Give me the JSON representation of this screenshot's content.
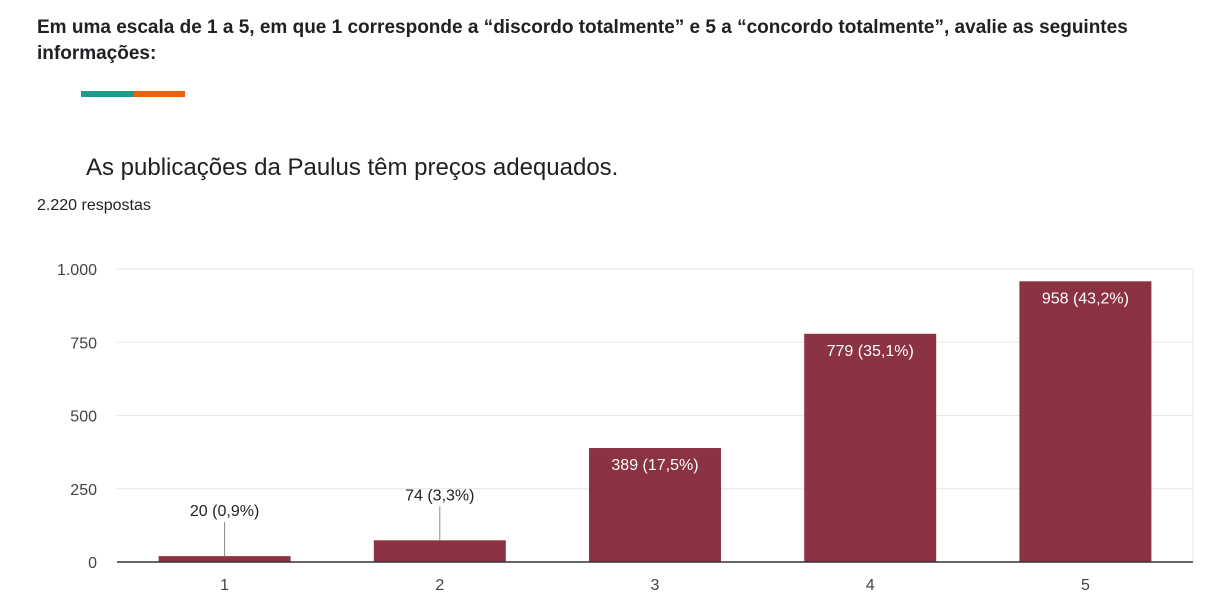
{
  "header": {
    "instruction": "Em uma escala de 1 a 5, em que 1 corresponde a “discordo totalmente” e 5 a “concordo totalmente”, avalie as seguintes informações:"
  },
  "accent_colors": [
    "#1a9b8c",
    "#e8630a"
  ],
  "question": {
    "title": "As publicações da Paulus têm preços adequados.",
    "responses": "2.220 respostas"
  },
  "chart_data": {
    "type": "bar",
    "categories": [
      "1",
      "2",
      "3",
      "4",
      "5"
    ],
    "values": [
      20,
      74,
      389,
      779,
      958
    ],
    "data_labels": [
      "20 (0,9%)",
      "74 (3,3%)",
      "389 (17,5%)",
      "779 (35,1%)",
      "958 (43,2%)"
    ],
    "ylim": [
      0,
      1000
    ],
    "yticks": [
      0,
      250,
      500,
      750,
      1000
    ],
    "ytick_labels": [
      "0",
      "250",
      "500",
      "750",
      "1.000"
    ],
    "bar_color": "#8b3243",
    "grid": true
  }
}
